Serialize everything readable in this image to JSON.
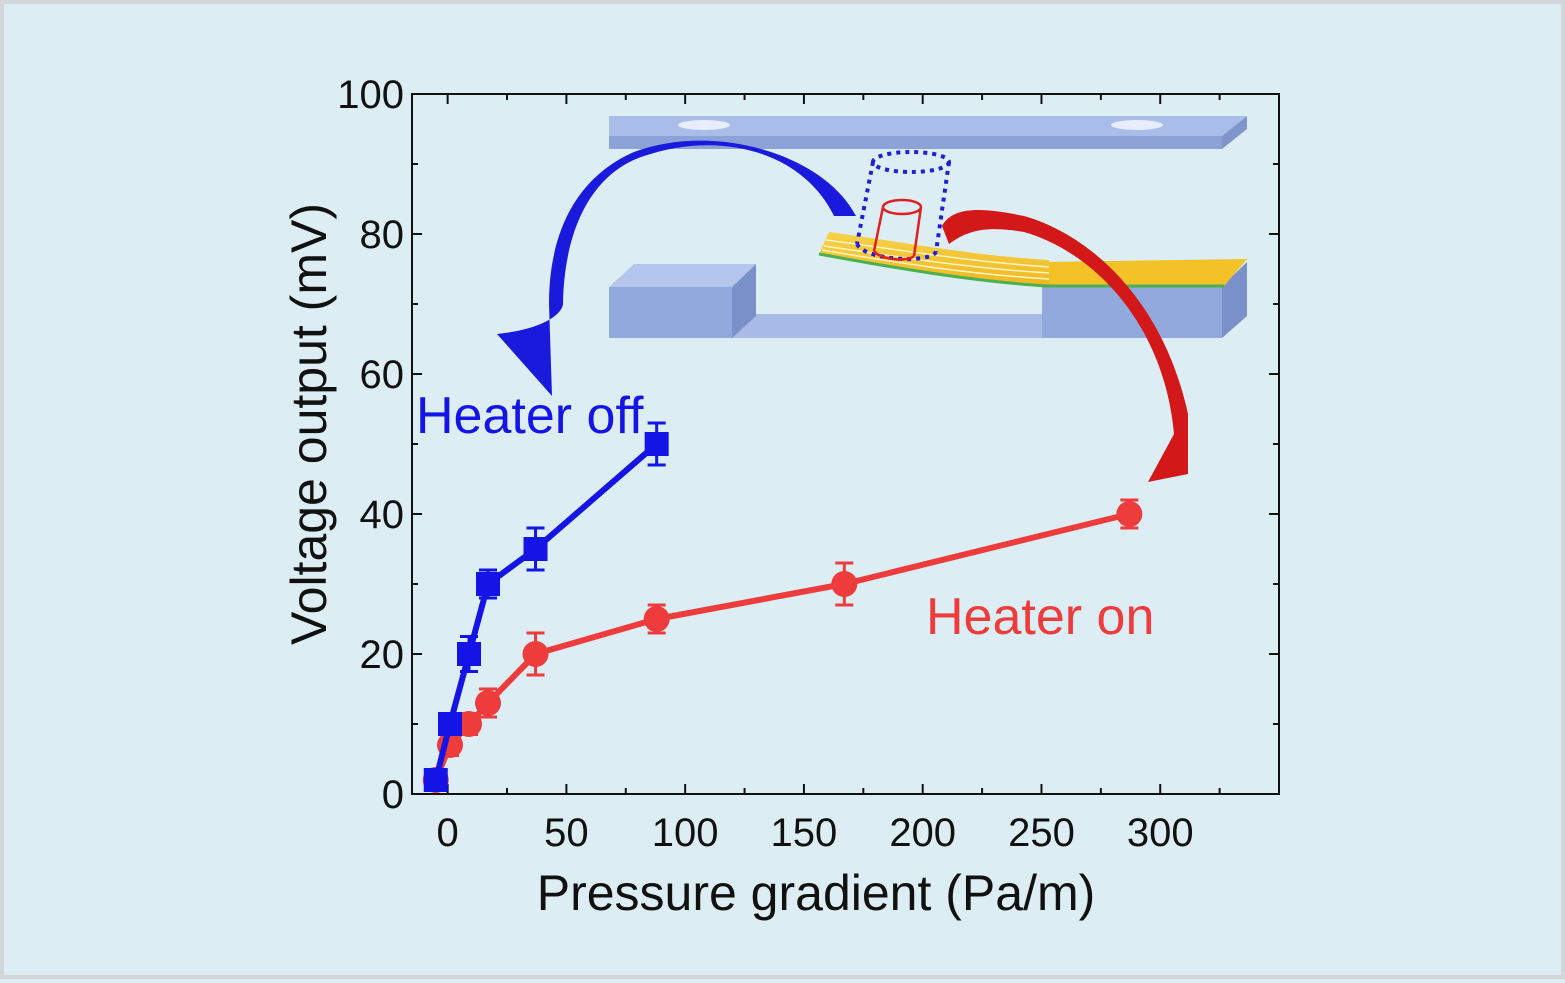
{
  "chart_data": {
    "type": "line",
    "xlabel": "Pressure gradient (Pa/m)",
    "ylabel": "Voltage output (mV)",
    "xlim": [
      -15,
      350
    ],
    "ylim": [
      0,
      100
    ],
    "xticks": [
      0,
      50,
      100,
      150,
      200,
      250,
      300
    ],
    "xtick_labels": [
      "0",
      "50",
      "100",
      "150",
      "200",
      "250",
      "300"
    ],
    "yticks": [
      0,
      20,
      40,
      60,
      80,
      100
    ],
    "ytick_labels": [
      "0",
      "20",
      "40",
      "60",
      "80",
      "100"
    ],
    "grid": false,
    "series": [
      {
        "name": "Heater off",
        "color": "#1414e6",
        "marker": "square",
        "x": [
          -5,
          1,
          9,
          17,
          37,
          88
        ],
        "y": [
          2,
          10,
          20,
          30,
          35,
          50
        ],
        "err": [
          1,
          1.5,
          2.5,
          2,
          3,
          3
        ]
      },
      {
        "name": "Heater on",
        "color": "#ee3c3c",
        "marker": "circle",
        "x": [
          -5,
          1,
          9,
          17,
          37,
          88,
          167,
          287
        ],
        "y": [
          2,
          7,
          10,
          13,
          20,
          25,
          30,
          40
        ],
        "err": [
          1,
          1.5,
          1.5,
          2,
          3,
          2,
          3,
          2
        ]
      }
    ]
  },
  "colors": {
    "background": "#dceef4",
    "heater_off": "#1414e6",
    "heater_on": "#ee3c3c",
    "device_body": "#8fa6dc",
    "cantilever": "#f5c22a"
  }
}
